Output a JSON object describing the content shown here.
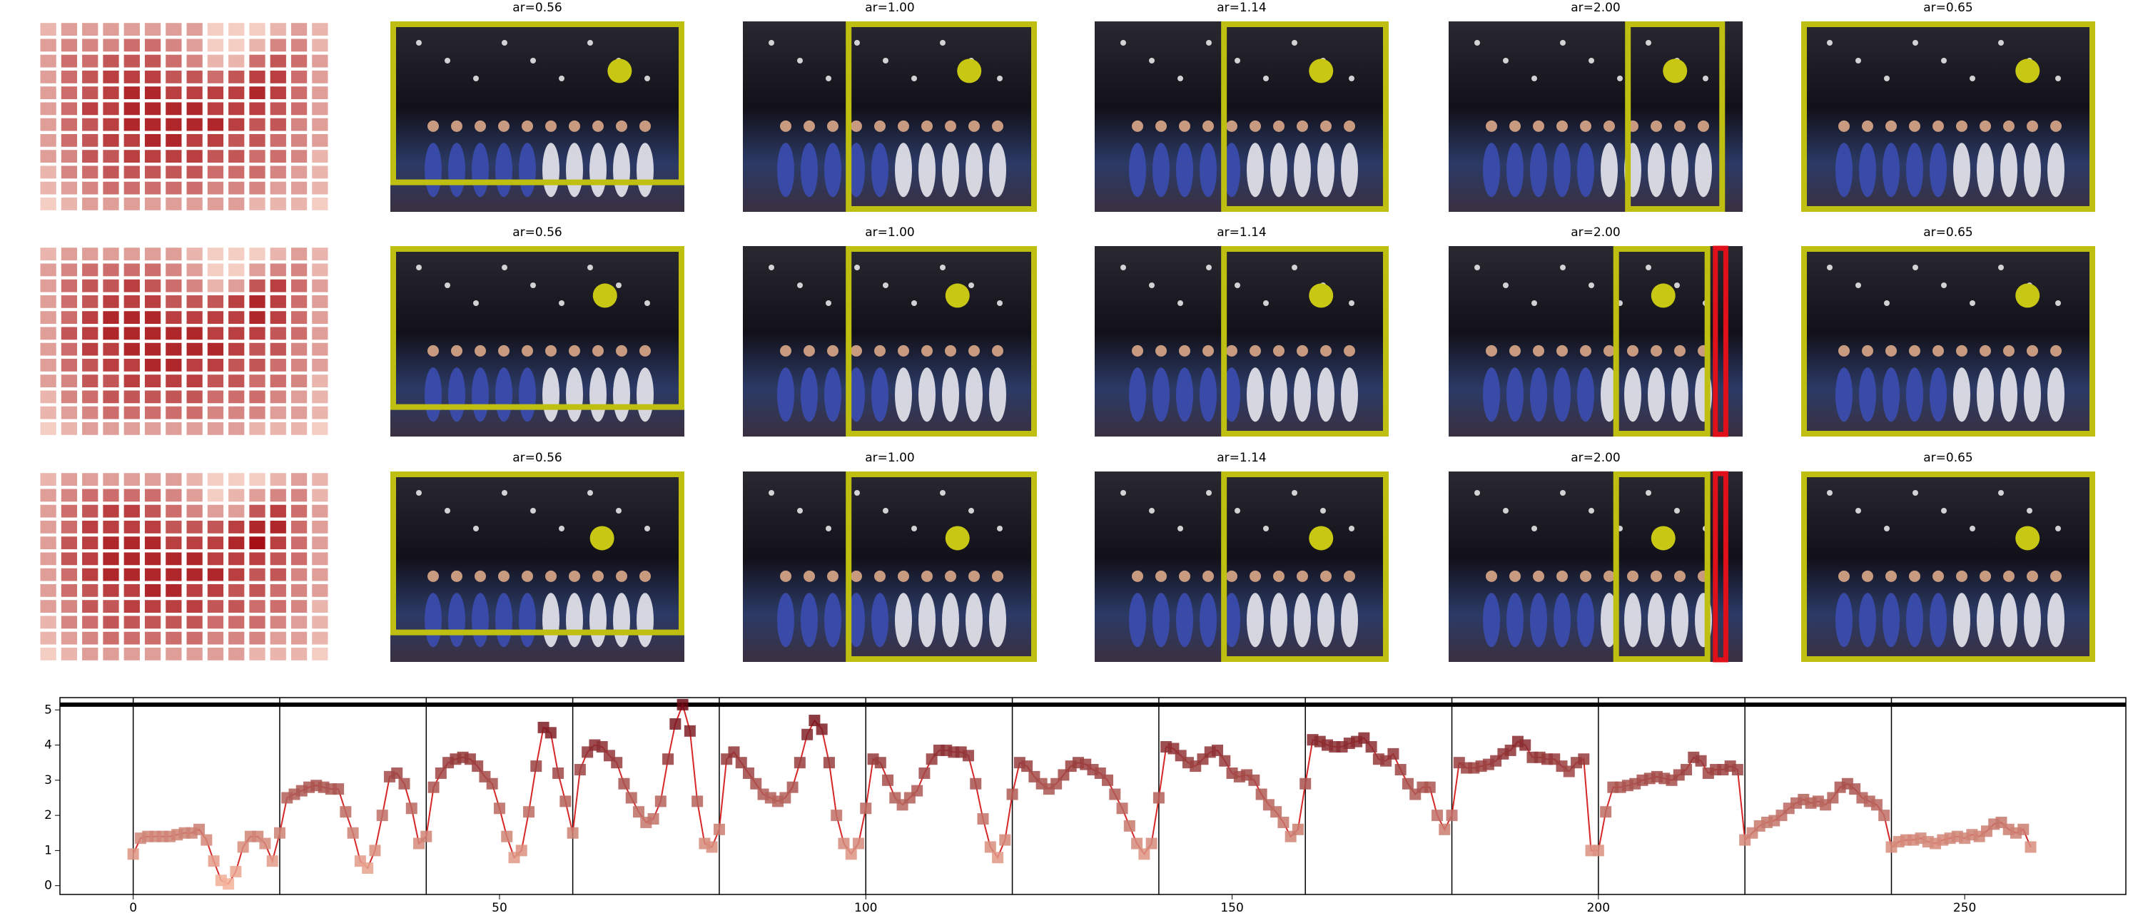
{
  "rows": [
    {
      "titles": [
        "ar=0.56",
        "ar=1.00",
        "ar=1.14",
        "ar=2.00",
        "ar=0.65"
      ],
      "heatmap": [
        [
          2,
          3,
          3,
          3,
          3,
          3,
          3,
          3,
          1,
          1,
          1,
          2,
          3,
          2
        ],
        [
          3,
          4,
          4,
          4,
          5,
          5,
          4,
          3,
          1,
          1,
          2,
          4,
          4,
          2
        ],
        [
          3,
          5,
          5,
          6,
          6,
          6,
          5,
          4,
          2,
          2,
          5,
          6,
          5,
          3
        ],
        [
          3,
          5,
          6,
          7,
          7,
          7,
          6,
          6,
          5,
          6,
          7,
          7,
          5,
          3
        ],
        [
          3,
          5,
          6,
          7,
          8,
          8,
          7,
          7,
          7,
          7,
          8,
          7,
          5,
          3
        ],
        [
          3,
          5,
          7,
          7,
          8,
          8,
          8,
          8,
          7,
          7,
          7,
          6,
          5,
          3
        ],
        [
          3,
          5,
          6,
          7,
          8,
          8,
          8,
          8,
          8,
          7,
          6,
          6,
          4,
          3
        ],
        [
          3,
          5,
          6,
          7,
          7,
          8,
          8,
          7,
          7,
          6,
          6,
          5,
          4,
          3
        ],
        [
          3,
          4,
          6,
          6,
          7,
          7,
          7,
          7,
          6,
          6,
          5,
          5,
          4,
          2
        ],
        [
          2,
          4,
          5,
          6,
          6,
          6,
          6,
          6,
          5,
          5,
          5,
          4,
          3,
          2
        ],
        [
          2,
          3,
          4,
          5,
          5,
          5,
          5,
          5,
          4,
          4,
          4,
          3,
          3,
          2
        ],
        [
          1,
          2,
          3,
          3,
          3,
          3,
          3,
          3,
          3,
          3,
          2,
          2,
          2,
          1
        ]
      ]
    },
    {
      "titles": [
        "ar=0.56",
        "ar=1.00",
        "ar=1.14",
        "ar=2.00",
        "ar=0.65"
      ],
      "heatmap": [
        [
          2,
          3,
          3,
          3,
          3,
          3,
          3,
          2,
          1,
          1,
          1,
          2,
          3,
          2
        ],
        [
          3,
          4,
          5,
          5,
          5,
          5,
          4,
          3,
          1,
          1,
          3,
          4,
          4,
          2
        ],
        [
          3,
          5,
          6,
          6,
          7,
          6,
          5,
          4,
          2,
          3,
          6,
          7,
          5,
          3
        ],
        [
          3,
          5,
          6,
          7,
          7,
          7,
          6,
          6,
          6,
          7,
          8,
          7,
          5,
          3
        ],
        [
          3,
          5,
          7,
          8,
          8,
          8,
          7,
          7,
          7,
          7,
          8,
          7,
          5,
          3
        ],
        [
          3,
          6,
          7,
          8,
          8,
          8,
          8,
          8,
          7,
          7,
          7,
          6,
          5,
          3
        ],
        [
          3,
          5,
          7,
          7,
          8,
          8,
          8,
          8,
          8,
          7,
          6,
          6,
          4,
          3
        ],
        [
          3,
          5,
          6,
          7,
          7,
          8,
          8,
          7,
          7,
          6,
          6,
          5,
          4,
          3
        ],
        [
          3,
          4,
          6,
          6,
          7,
          7,
          7,
          7,
          6,
          6,
          5,
          5,
          4,
          2
        ],
        [
          2,
          4,
          5,
          6,
          6,
          6,
          6,
          6,
          5,
          5,
          5,
          4,
          3,
          2
        ],
        [
          2,
          3,
          4,
          5,
          5,
          5,
          5,
          5,
          4,
          4,
          4,
          3,
          3,
          2
        ],
        [
          1,
          2,
          3,
          3,
          3,
          3,
          3,
          3,
          3,
          3,
          2,
          2,
          2,
          1
        ]
      ]
    },
    {
      "titles": [
        "ar=0.56",
        "ar=1.00",
        "ar=1.14",
        "ar=2.00",
        "ar=0.65"
      ],
      "heatmap": [
        [
          2,
          3,
          3,
          3,
          3,
          3,
          3,
          2,
          1,
          1,
          1,
          2,
          3,
          2
        ],
        [
          3,
          4,
          5,
          5,
          5,
          5,
          4,
          3,
          1,
          2,
          3,
          4,
          4,
          2
        ],
        [
          3,
          5,
          6,
          7,
          7,
          6,
          5,
          4,
          3,
          3,
          6,
          7,
          5,
          3
        ],
        [
          3,
          5,
          7,
          7,
          7,
          7,
          6,
          6,
          6,
          7,
          8,
          8,
          5,
          3
        ],
        [
          3,
          6,
          7,
          8,
          8,
          8,
          7,
          7,
          7,
          8,
          9,
          7,
          5,
          3
        ],
        [
          3,
          6,
          7,
          8,
          8,
          8,
          8,
          8,
          7,
          7,
          7,
          6,
          5,
          3
        ],
        [
          3,
          5,
          7,
          8,
          8,
          8,
          8,
          8,
          8,
          7,
          6,
          6,
          4,
          3
        ],
        [
          3,
          5,
          6,
          7,
          7,
          8,
          8,
          7,
          7,
          6,
          6,
          5,
          4,
          3
        ],
        [
          3,
          4,
          6,
          6,
          7,
          7,
          7,
          7,
          6,
          6,
          5,
          5,
          4,
          2
        ],
        [
          2,
          4,
          5,
          6,
          6,
          6,
          6,
          6,
          5,
          5,
          5,
          4,
          3,
          2
        ],
        [
          2,
          3,
          4,
          5,
          5,
          5,
          5,
          5,
          4,
          4,
          4,
          3,
          3,
          2
        ],
        [
          1,
          2,
          3,
          3,
          3,
          3,
          3,
          3,
          3,
          3,
          2,
          2,
          2,
          1
        ]
      ]
    }
  ],
  "heatmap_colors": [
    "#fee5d9",
    "#a50f15"
  ],
  "chart_data": {
    "type": "line",
    "color": "#d62728",
    "marker_colors": [
      "#fcbba1",
      "#67000d"
    ],
    "values": [
      0.9,
      1.35,
      1.4,
      1.4,
      1.4,
      1.4,
      1.45,
      1.5,
      1.5,
      1.6,
      1.3,
      0.7,
      0.15,
      0.05,
      0.4,
      1.1,
      1.4,
      1.4,
      1.2,
      0.7,
      1.5,
      2.5,
      2.6,
      2.7,
      2.8,
      2.85,
      2.8,
      2.75,
      2.75,
      2.1,
      1.5,
      0.7,
      0.5,
      1.0,
      2.0,
      3.1,
      3.2,
      2.9,
      2.2,
      1.2,
      1.4,
      2.8,
      3.2,
      3.5,
      3.6,
      3.65,
      3.6,
      3.4,
      3.1,
      2.9,
      2.2,
      1.4,
      0.8,
      1.0,
      2.1,
      3.4,
      4.5,
      4.35,
      3.2,
      2.4,
      1.5,
      3.3,
      3.8,
      4.0,
      3.95,
      3.7,
      3.5,
      2.9,
      2.5,
      2.1,
      1.8,
      1.9,
      2.4,
      3.6,
      4.6,
      5.15,
      4.4,
      2.4,
      1.2,
      1.1,
      1.6,
      3.6,
      3.8,
      3.5,
      3.2,
      2.9,
      2.6,
      2.5,
      2.4,
      2.5,
      2.8,
      3.5,
      4.3,
      4.7,
      4.45,
      3.5,
      2.0,
      1.2,
      0.9,
      1.2,
      2.2,
      3.6,
      3.5,
      3.0,
      2.5,
      2.3,
      2.5,
      2.7,
      3.2,
      3.6,
      3.85,
      3.85,
      3.8,
      3.8,
      3.7,
      2.9,
      1.9,
      1.1,
      0.8,
      1.3,
      2.6,
      3.5,
      3.4,
      3.1,
      2.9,
      2.75,
      2.9,
      3.15,
      3.4,
      3.5,
      3.45,
      3.3,
      3.2,
      3.0,
      2.6,
      2.2,
      1.7,
      1.2,
      0.9,
      1.2,
      2.5,
      3.95,
      3.9,
      3.7,
      3.5,
      3.4,
      3.6,
      3.8,
      3.85,
      3.55,
      3.2,
      3.1,
      3.15,
      3.0,
      2.6,
      2.3,
      2.1,
      1.8,
      1.4,
      1.6,
      2.9,
      4.15,
      4.1,
      4.0,
      3.95,
      3.95,
      4.05,
      4.1,
      4.2,
      3.95,
      3.6,
      3.55,
      3.75,
      3.3,
      2.9,
      2.6,
      2.8,
      2.8,
      2.0,
      1.6,
      2.0,
      3.5,
      3.35,
      3.35,
      3.4,
      3.45,
      3.55,
      3.75,
      3.85,
      4.1,
      4.0,
      3.65,
      3.65,
      3.6,
      3.6,
      3.4,
      3.25,
      3.5,
      3.6,
      1.0,
      1.0,
      2.1,
      2.8,
      2.8,
      2.85,
      2.9,
      3.0,
      3.05,
      3.1,
      3.05,
      3.0,
      3.15,
      3.3,
      3.65,
      3.55,
      3.2,
      3.3,
      3.3,
      3.4,
      3.3,
      1.3,
      1.5,
      1.7,
      1.8,
      1.85,
      2.0,
      2.2,
      2.35,
      2.45,
      2.35,
      2.4,
      2.3,
      2.5,
      2.8,
      2.9,
      2.75,
      2.5,
      2.4,
      2.3,
      2.0,
      1.1,
      1.25,
      1.3,
      1.3,
      1.35,
      1.25,
      1.2,
      1.3,
      1.35,
      1.4,
      1.35,
      1.45,
      1.4,
      1.55,
      1.75,
      1.8,
      1.6,
      1.5,
      1.6,
      1.1
    ],
    "hline": 5.15,
    "vlines": [
      0,
      20,
      40,
      60,
      80,
      100,
      120,
      140,
      160,
      180,
      200,
      220,
      240
    ],
    "xlim": [
      -10,
      272
    ],
    "ylim": [
      -0.25,
      5.35
    ],
    "xticks": [
      0,
      50,
      100,
      150,
      200,
      250
    ],
    "yticks": [
      0,
      1,
      2,
      3,
      4,
      5
    ]
  }
}
